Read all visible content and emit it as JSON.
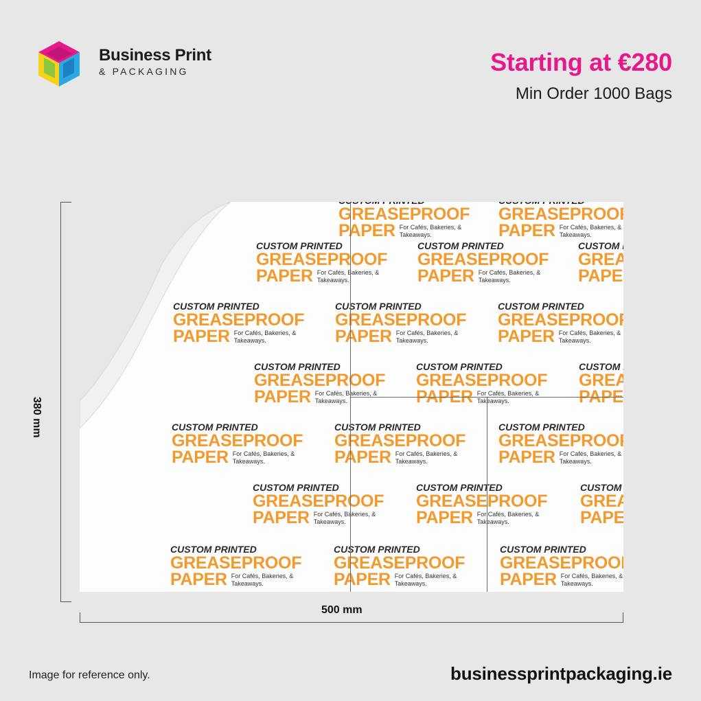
{
  "brand": {
    "name": "Business Print",
    "sub": "& PACKAGING"
  },
  "offer": {
    "price": "Starting at €280",
    "min_order": "Min Order 1000 Bags"
  },
  "product": {
    "tile_line1": "CUSTOM PRINTED",
    "tile_line2": "GREASEPROOF",
    "tile_line3": "PAPER",
    "tile_line4": "For Cafés, Bakeries, & Takeaways."
  },
  "dimensions": {
    "height": "380 mm",
    "width": "500 mm"
  },
  "footer": {
    "disclaimer": "Image for reference only.",
    "website": "businessprintpackaging.ie"
  },
  "colors": {
    "accent": "#e6198a",
    "print": "#f29a2e",
    "background": "#e7e7e7"
  }
}
